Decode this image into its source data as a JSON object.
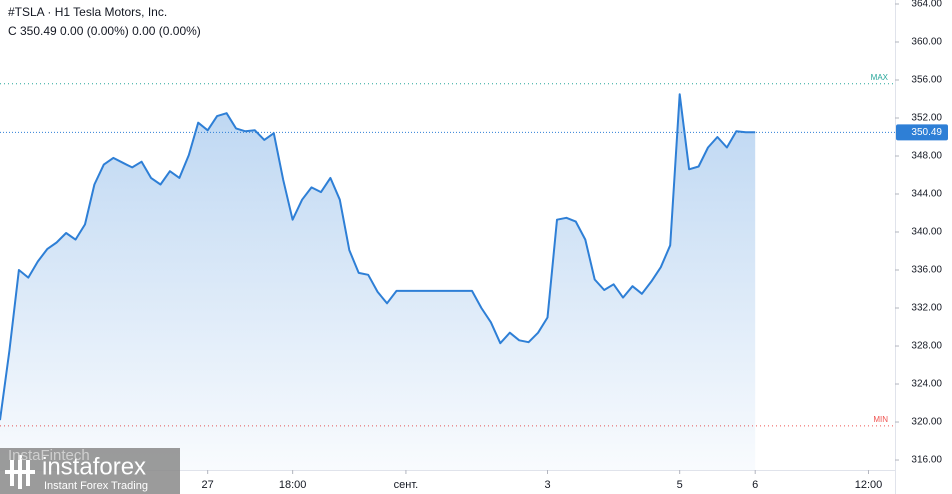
{
  "chart_data": {
    "type": "area",
    "title": "#TSLA · H1 Tesla Motors, Inc.",
    "subtitle": "C 350.49 0.00 (0.00%) 0.00 (0.00%)",
    "watermark": {
      "brand": "InstaFintech",
      "logo": "instaforex",
      "tagline": "Instant Forex Trading"
    },
    "color": "#2e7fd6",
    "grid": false,
    "categories": [
      null,
      null,
      null,
      null,
      null,
      null,
      null,
      null,
      null,
      null,
      null,
      null,
      null,
      null,
      null,
      null,
      null,
      null,
      null,
      null,
      null,
      null,
      "27",
      null,
      null,
      null,
      null,
      null,
      null,
      null,
      null,
      "18:00",
      null,
      null,
      null,
      null,
      null,
      null,
      null,
      null,
      null,
      null,
      null,
      "сент.",
      null,
      null,
      null,
      null,
      null,
      null,
      null,
      null,
      null,
      null,
      null,
      null,
      null,
      null,
      "3",
      null,
      null,
      null,
      null,
      null,
      null,
      null,
      null,
      null,
      null,
      null,
      null,
      null,
      "5",
      null,
      null,
      null,
      null,
      null,
      null,
      null,
      "6",
      null,
      null,
      null,
      null,
      null,
      null,
      null,
      null,
      null,
      null,
      null,
      "12:00",
      null,
      null
    ],
    "values": [
      320.2,
      327.5,
      336.0,
      335.2,
      336.9,
      338.2,
      338.9,
      339.9,
      339.2,
      340.8,
      345.0,
      347.1,
      347.8,
      347.3,
      346.8,
      347.4,
      345.7,
      345.0,
      346.4,
      345.7,
      348.1,
      351.5,
      350.7,
      352.2,
      352.5,
      350.9,
      350.6,
      350.7,
      349.7,
      350.4,
      345.5,
      341.3,
      343.4,
      344.7,
      344.2,
      345.7,
      343.4,
      338.1,
      335.7,
      335.5,
      333.7,
      332.5,
      333.8,
      333.8,
      333.8,
      333.8,
      333.8,
      333.8,
      333.8,
      333.8,
      333.8,
      332.0,
      330.5,
      328.3,
      329.4,
      328.6,
      328.4,
      329.4,
      331.0,
      341.3,
      341.5,
      341.1,
      339.2,
      335.0,
      333.9,
      334.5,
      333.1,
      334.3,
      333.5,
      334.8,
      336.3,
      338.6,
      354.5,
      346.6,
      346.9,
      348.9,
      350.0,
      348.9,
      350.6,
      350.49,
      350.49,
      null,
      null,
      null,
      null,
      null,
      null,
      null,
      null,
      null,
      null,
      null,
      null,
      null,
      null
    ],
    "last_price": 350.49,
    "max_line": {
      "value": 355.6,
      "label": "MAX"
    },
    "min_line": {
      "value": 319.6,
      "label": "MIN"
    },
    "ylim": [
      314.95,
      364.42
    ],
    "yticks": [
      {
        "value": 316,
        "label": "316.00"
      },
      {
        "value": 320,
        "label": "320.00"
      },
      {
        "value": 324,
        "label": "324.00"
      },
      {
        "value": 328,
        "label": "328.00"
      },
      {
        "value": 332,
        "label": "332.00"
      },
      {
        "value": 336,
        "label": "336.00"
      },
      {
        "value": 340,
        "label": "340.00"
      },
      {
        "value": 344,
        "label": "344.00"
      },
      {
        "value": 348,
        "label": "348.00"
      },
      {
        "value": 352,
        "label": "352.00"
      },
      {
        "value": 356,
        "label": "356.00"
      },
      {
        "value": 360,
        "label": "360.00"
      },
      {
        "value": 364,
        "label": "364.00"
      }
    ]
  }
}
